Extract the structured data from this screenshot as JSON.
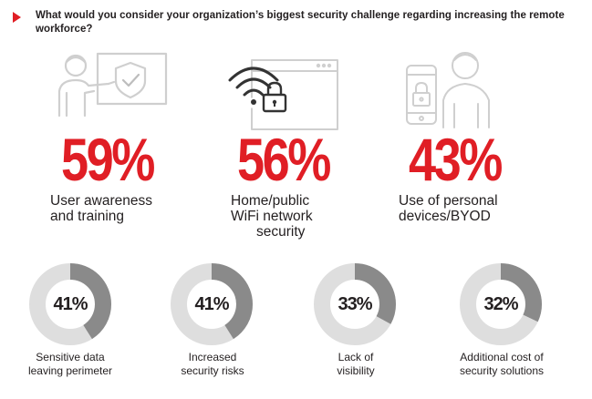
{
  "question": "What would you consider your organization’s biggest security challenge regarding increasing the remote workforce?",
  "colors": {
    "accent": "#e01e25",
    "text": "#231f20",
    "icon_line": "#cfcfcf",
    "donut_track": "#dedede",
    "donut_fill": "#8a8a8a"
  },
  "chart_data": [
    {
      "type": "bar",
      "categories": [
        "User awareness and training",
        "Home/public WiFi network security",
        "Use of personal devices/BYOD"
      ],
      "values": [
        59,
        56,
        43
      ],
      "unit": "%"
    },
    {
      "type": "pie",
      "categories": [
        "Sensitive data leaving perimeter",
        "Increased security risks",
        "Lack of visibility",
        "Additional cost of security solutions"
      ],
      "values": [
        41,
        41,
        33,
        32
      ],
      "unit": "%"
    }
  ],
  "top_stats": [
    {
      "value": "59%",
      "label_line1": "User awareness",
      "label_line2": "and training",
      "label_line3": "",
      "icon": "presenter-shield-icon"
    },
    {
      "value": "56%",
      "label_line1": "Home/public",
      "label_line2": "WiFi network",
      "label_line3": "security",
      "icon": "wifi-lock-icon"
    },
    {
      "value": "43%",
      "label_line1": "Use of personal",
      "label_line2": "devices/BYOD",
      "label_line3": "",
      "icon": "phone-lock-person-icon"
    }
  ],
  "donut_stats": [
    {
      "value": "41%",
      "label_line1": "Sensitive data",
      "label_line2": "leaving perimeter"
    },
    {
      "value": "41%",
      "label_line1": "Increased",
      "label_line2": "security risks"
    },
    {
      "value": "33%",
      "label_line1": "Lack of",
      "label_line2": "visibility"
    },
    {
      "value": "32%",
      "label_line1": "Additional cost of",
      "label_line2": "security solutions"
    }
  ]
}
